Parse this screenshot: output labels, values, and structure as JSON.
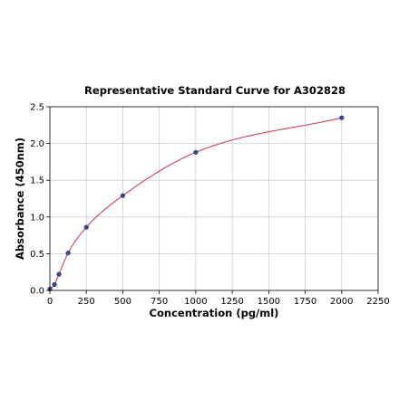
{
  "chart_data": {
    "type": "scatter",
    "title": "Representative Standard Curve for A302828",
    "xlabel": "Concentration (pg/ml)",
    "ylabel": "Absorbance (450nm)",
    "xlim": [
      0,
      2250
    ],
    "ylim": [
      0,
      2.5
    ],
    "xticks": [
      0,
      250,
      500,
      750,
      1000,
      1250,
      1500,
      1750,
      2000,
      2250
    ],
    "yticks": [
      0.0,
      0.5,
      1.0,
      1.5,
      2.0,
      2.5
    ],
    "xtick_labels": [
      "0",
      "250",
      "500",
      "750",
      "1000",
      "1250",
      "1500",
      "1750",
      "2000",
      "2250"
    ],
    "ytick_labels": [
      "0.0",
      "0.5",
      "1.0",
      "1.5",
      "2.0",
      "2.5"
    ],
    "grid": true,
    "legend": "none",
    "series": [
      {
        "x": [
          0,
          31.25,
          62.5,
          125,
          250,
          500,
          1000,
          2000
        ],
        "y": [
          0.02,
          0.08,
          0.22,
          0.51,
          0.86,
          1.29,
          1.88,
          2.35
        ],
        "marker_color": "#3b4a8f",
        "line_color": "#c8435a",
        "fit": "smooth curve"
      }
    ]
  }
}
